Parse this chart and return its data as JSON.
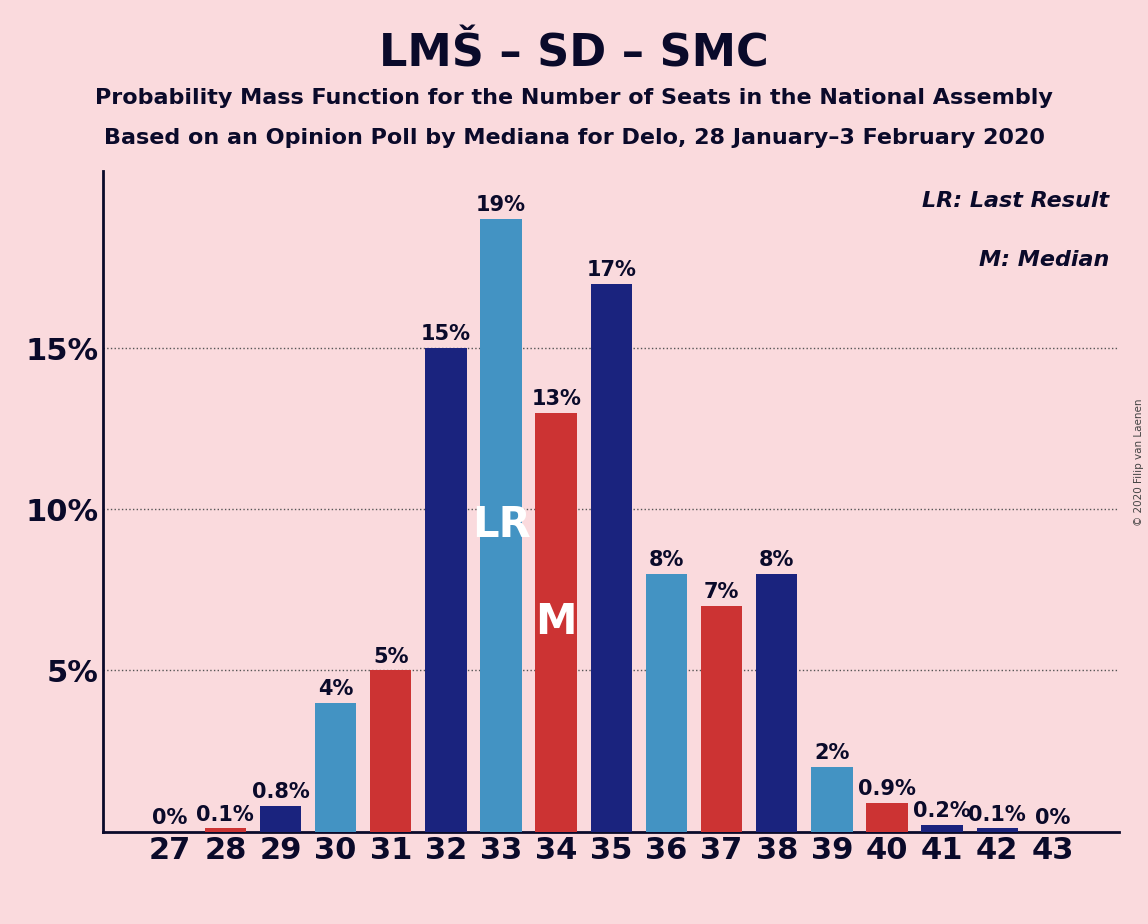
{
  "title": "LMŠ – SD – SMC",
  "subtitle1": "Probability Mass Function for the Number of Seats in the National Assembly",
  "subtitle2": "Based on an Opinion Poll by Mediana for Delo, 28 January–3 February 2020",
  "copyright": "© 2020 Filip van Laenen",
  "legend_lr": "LR: Last Result",
  "legend_m": "M: Median",
  "background_color": "#FADADD",
  "seats": [
    27,
    28,
    29,
    30,
    31,
    32,
    33,
    34,
    35,
    36,
    37,
    38,
    39,
    40,
    41,
    42,
    43
  ],
  "pmf_final": [
    0.0,
    0.1,
    0.8,
    4.0,
    5.0,
    15.0,
    19.0,
    13.0,
    17.0,
    8.0,
    7.0,
    8.0,
    2.0,
    0.9,
    0.2,
    0.1,
    0.0
  ],
  "colors_final": [
    "#CC3333",
    "#CC3333",
    "#1A237E",
    "#4393C3",
    "#CC3333",
    "#1A237E",
    "#4393C3",
    "#CC3333",
    "#1A237E",
    "#4393C3",
    "#CC3333",
    "#1A237E",
    "#4393C3",
    "#CC3333",
    "#1A237E",
    "#1A237E",
    "#1A237E"
  ],
  "lr_seat": 33,
  "m_seat": 34,
  "lr_label": "LR",
  "m_label": "M",
  "yticks": [
    5,
    10,
    15
  ],
  "ylim": [
    0,
    20.5
  ],
  "title_fontsize": 32,
  "subtitle_fontsize": 16,
  "tick_fontsize": 22,
  "bar_label_fontsize": 15,
  "lr_m_fontsize": 30
}
